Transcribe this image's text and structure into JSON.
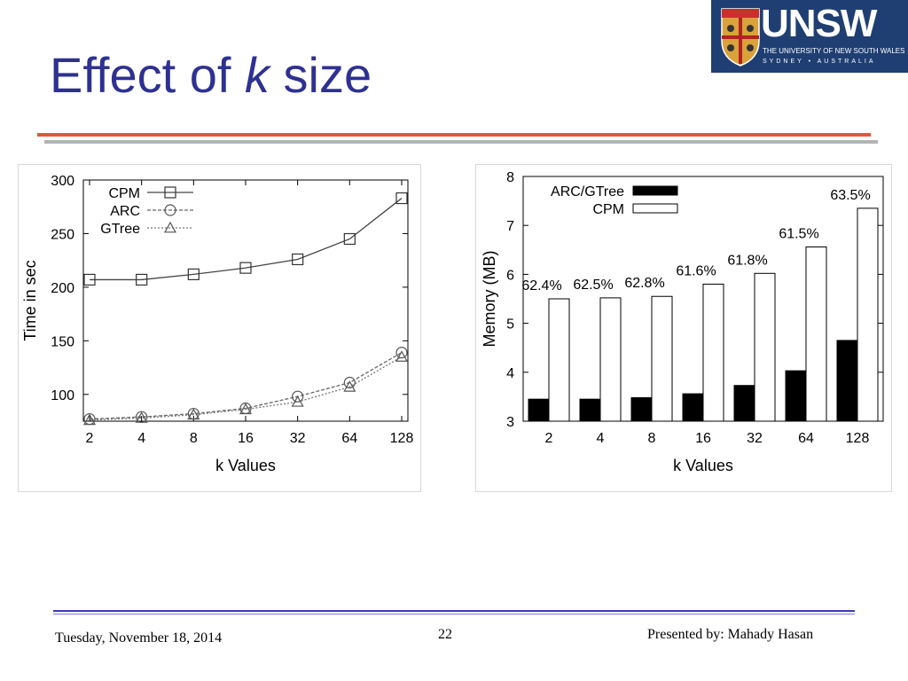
{
  "slide": {
    "title_pre": "Effect of ",
    "title_k": "k",
    "title_post": " size",
    "logo": {
      "name": "UNSW",
      "line1": "THE UNIVERSITY OF NEW SOUTH WALES",
      "line2": "SYDNEY • AUSTRALIA"
    },
    "footer": {
      "date": "Tuesday, November 18, 2014",
      "page": "22",
      "presenter": "Presented by: Mahady Hasan"
    }
  },
  "colors": {
    "title": "#2e3192",
    "accent_line": "#e0583a",
    "footer_line": "#3b3bbf",
    "logo_bg": "#1f3f73"
  },
  "chart_data": [
    {
      "type": "line",
      "xlabel": "k Values",
      "ylabel": "Time in sec",
      "categories": [
        "2",
        "4",
        "8",
        "16",
        "32",
        "64",
        "128"
      ],
      "ylim": [
        75,
        300
      ],
      "yticks": [
        100,
        150,
        200,
        250,
        300
      ],
      "legend_position": "top-left",
      "series": [
        {
          "name": "CPM",
          "marker": "square",
          "values": [
            207,
            207,
            212,
            218,
            226,
            245,
            283
          ]
        },
        {
          "name": "ARC",
          "marker": "circle",
          "values": [
            77,
            79,
            82,
            87,
            98,
            111,
            139
          ]
        },
        {
          "name": "GTree",
          "marker": "triangle",
          "values": [
            76,
            78,
            81,
            86,
            93,
            107,
            135
          ]
        }
      ]
    },
    {
      "type": "bar",
      "xlabel": "k Values",
      "ylabel": "Memory (MB)",
      "categories": [
        "2",
        "4",
        "8",
        "16",
        "32",
        "64",
        "128"
      ],
      "ylim": [
        3,
        8
      ],
      "yticks": [
        3,
        4,
        5,
        6,
        7,
        8
      ],
      "legend_position": "top-left",
      "series": [
        {
          "name": "ARC/GTree",
          "fill": "#000000",
          "values": [
            3.45,
            3.45,
            3.48,
            3.56,
            3.73,
            4.03,
            4.65
          ]
        },
        {
          "name": "CPM",
          "fill": "#ffffff",
          "values": [
            5.5,
            5.52,
            5.55,
            5.8,
            6.02,
            6.56,
            7.35
          ]
        }
      ],
      "annotations": [
        "62.4%",
        "62.5%",
        "62.8%",
        "61.6%",
        "61.8%",
        "61.5%",
        "63.5%"
      ]
    }
  ]
}
